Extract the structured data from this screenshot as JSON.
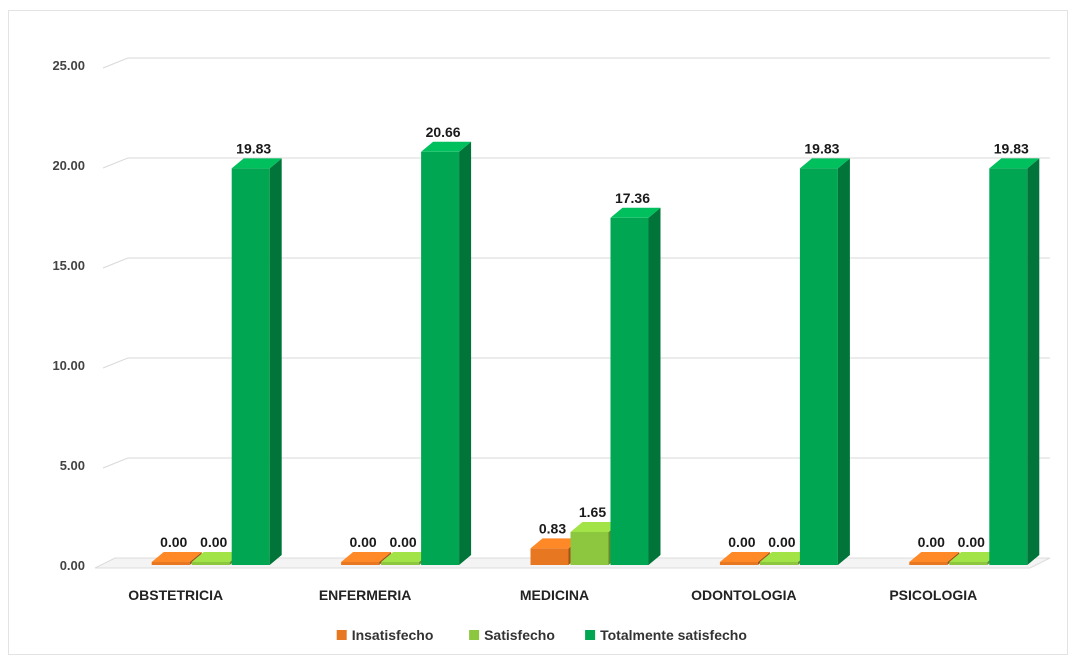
{
  "chart_data": {
    "type": "bar",
    "title": "",
    "xlabel": "",
    "ylabel": "",
    "categories": [
      "OBSTETRICIA",
      "ENFERMERIA",
      "MEDICINA",
      "ODONTOLOGIA",
      "PSICOLOGIA"
    ],
    "series": [
      {
        "name": "Insatisfecho",
        "values": [
          0.0,
          0.0,
          0.83,
          0.0,
          0.0
        ],
        "color": "#E87722"
      },
      {
        "name": "Satisfecho",
        "values": [
          0.0,
          0.0,
          1.65,
          0.0,
          0.0
        ],
        "color": "#8DC63F"
      },
      {
        "name": "Totalmente satisfecho",
        "values": [
          19.83,
          20.66,
          17.36,
          19.83,
          19.83
        ],
        "color": "#00A651"
      }
    ],
    "ylim": [
      0,
      25
    ],
    "yticks": [
      "0.00",
      "5.00",
      "10.00",
      "15.00",
      "20.00",
      "25.00"
    ],
    "data_labels": [
      [
        "0.00",
        "0.00",
        "0.83",
        "0.00",
        "0.00"
      ],
      [
        "0.00",
        "0.00",
        "1.65",
        "0.00",
        "0.00"
      ],
      [
        "19.83",
        "20.66",
        "17.36",
        "19.83",
        "19.83"
      ]
    ],
    "grid": true,
    "legend": "bottom",
    "style": "3d-columns"
  }
}
